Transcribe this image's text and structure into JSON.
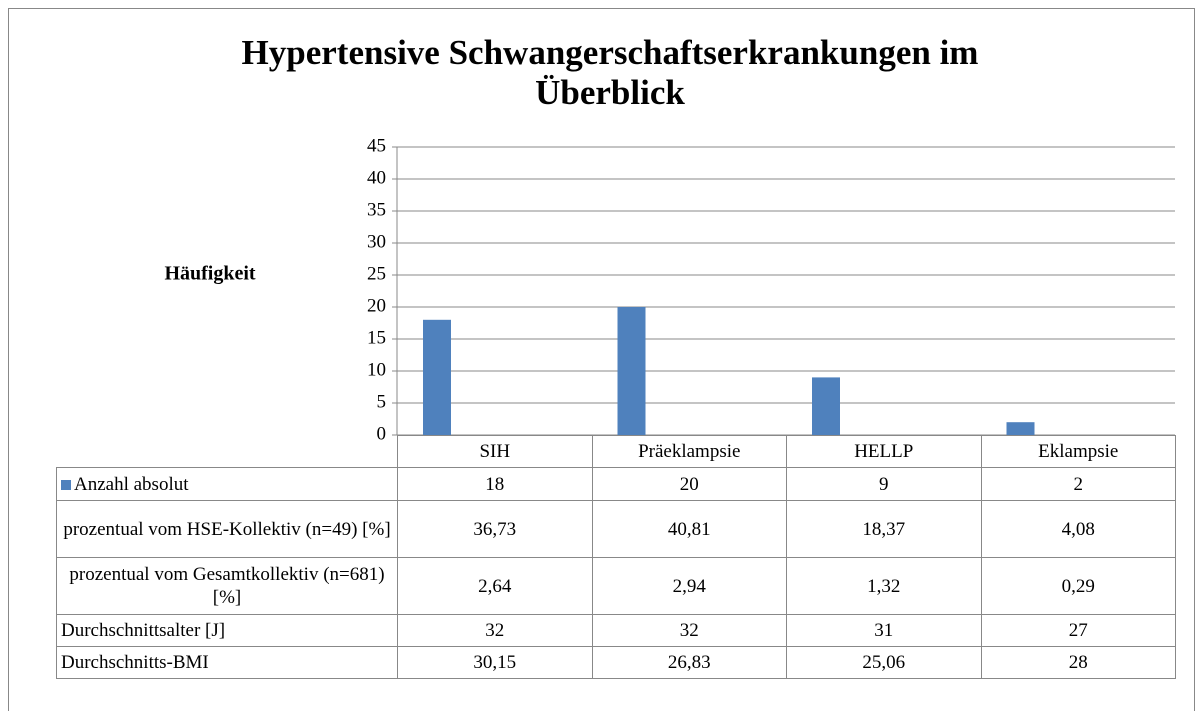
{
  "chart_data": {
    "type": "bar",
    "title": "Hypertensive Schwangerschaftserkrankungen im Überblick",
    "y_label": "Häufigkeit",
    "categories": [
      "SIH",
      "Präeklampsie",
      "HELLP",
      "Eklampsie"
    ],
    "series": [
      {
        "name": "Anzahl absolut",
        "color": "#4f81bd",
        "values": [
          18,
          20,
          9,
          2
        ]
      }
    ],
    "table_rows": [
      {
        "name": "prozentual vom HSE-Kollektiv (n=49) [%]",
        "values": [
          36.73,
          40.81,
          18.37,
          4.08
        ],
        "value_labels": [
          "36,73",
          "40,81",
          "18,37",
          "4,08"
        ]
      },
      {
        "name": "prozentual vom Gesamtkollektiv (n=681) [%]",
        "values": [
          2.64,
          2.94,
          1.32,
          0.29
        ],
        "value_labels": [
          "2,64",
          "2,94",
          "1,32",
          "0,29"
        ]
      },
      {
        "name": "Durchschnittsalter [J]",
        "values": [
          32,
          32,
          31,
          27
        ]
      },
      {
        "name": "Durchschnitts-BMI",
        "values": [
          30.15,
          26.83,
          25.06,
          28
        ],
        "value_labels": [
          "30,15",
          "26,83",
          "25,06",
          "28"
        ]
      }
    ],
    "ylim": [
      0,
      45
    ],
    "yticks": [
      0,
      5,
      10,
      15,
      20,
      25,
      30,
      35,
      40,
      45
    ],
    "grid": true
  }
}
